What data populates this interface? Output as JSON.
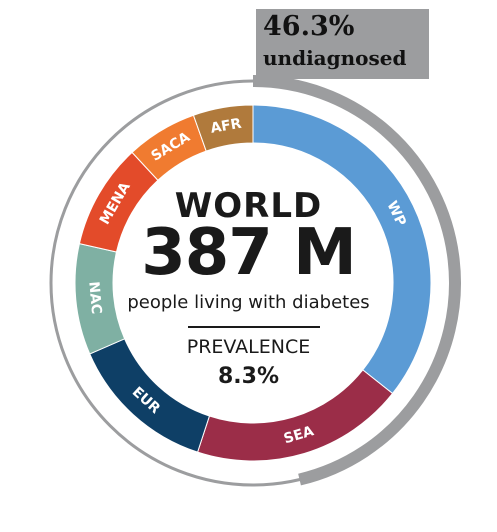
{
  "chart_data": {
    "type": "pie",
    "region": "WORLD",
    "total": "387 M",
    "subtitle": "people living with diabetes",
    "prevalence_label": "PREVALENCE",
    "prevalence_value": "8.3%",
    "undiagnosed_percent": "46.3%",
    "undiagnosed_label": "undiagnosed",
    "undiagnosed_fraction": 0.463,
    "segments": [
      {
        "label": "WP",
        "value": 138,
        "color": "#5b9bd5"
      },
      {
        "label": "SEA",
        "value": 75,
        "color": "#9b2d48"
      },
      {
        "label": "EUR",
        "value": 52,
        "color": "#0e3f66"
      },
      {
        "label": "NAC",
        "value": 39,
        "color": "#7fb0a3"
      },
      {
        "label": "MENA",
        "value": 37,
        "color": "#e34b2a"
      },
      {
        "label": "SACA",
        "value": 25,
        "color": "#f07b30"
      },
      {
        "label": "AFR",
        "value": 21,
        "color": "#b07a3c"
      }
    ]
  }
}
